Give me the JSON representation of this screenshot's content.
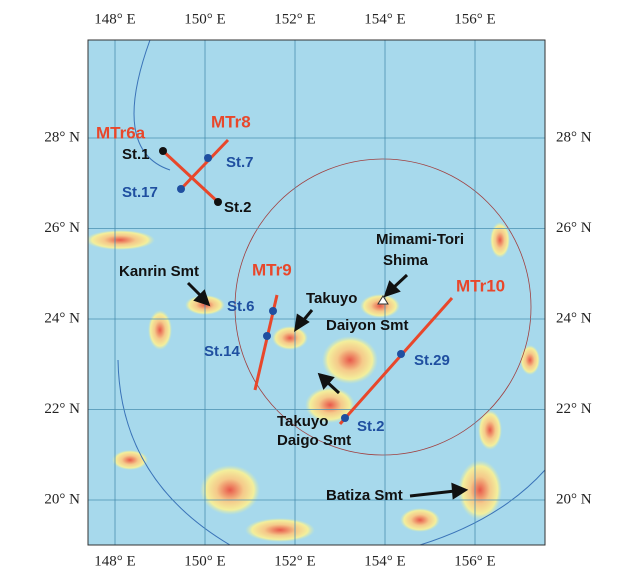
{
  "map": {
    "lon_ticks": [
      {
        "value": 148,
        "label": "148° E"
      },
      {
        "value": 150,
        "label": "150° E"
      },
      {
        "value": 152,
        "label": "152° E"
      },
      {
        "value": 154,
        "label": "154° E"
      },
      {
        "value": 156,
        "label": "156° E"
      }
    ],
    "lat_ticks": [
      {
        "value": 28,
        "label": "28° N"
      },
      {
        "value": 26,
        "label": "26° N"
      },
      {
        "value": 24,
        "label": "24° N"
      },
      {
        "value": 22,
        "label": "22° N"
      },
      {
        "value": 20,
        "label": "20° N"
      }
    ],
    "transects": [
      "MTr6a",
      "MTr8",
      "MTr9",
      "MTr10"
    ],
    "stations": [
      "St.1",
      "St.7",
      "St.17",
      "St.2",
      "St.6",
      "St.14",
      "St.29",
      "St.2"
    ],
    "features": [
      [
        "Kanrin Smt"
      ],
      [
        "Mimami-Tori",
        "Shima"
      ],
      [
        "Takuyo",
        "Daiyon Smt"
      ],
      [
        "Takuyo",
        "Daigo Smt"
      ],
      [
        "Batiza Smt"
      ]
    ]
  }
}
